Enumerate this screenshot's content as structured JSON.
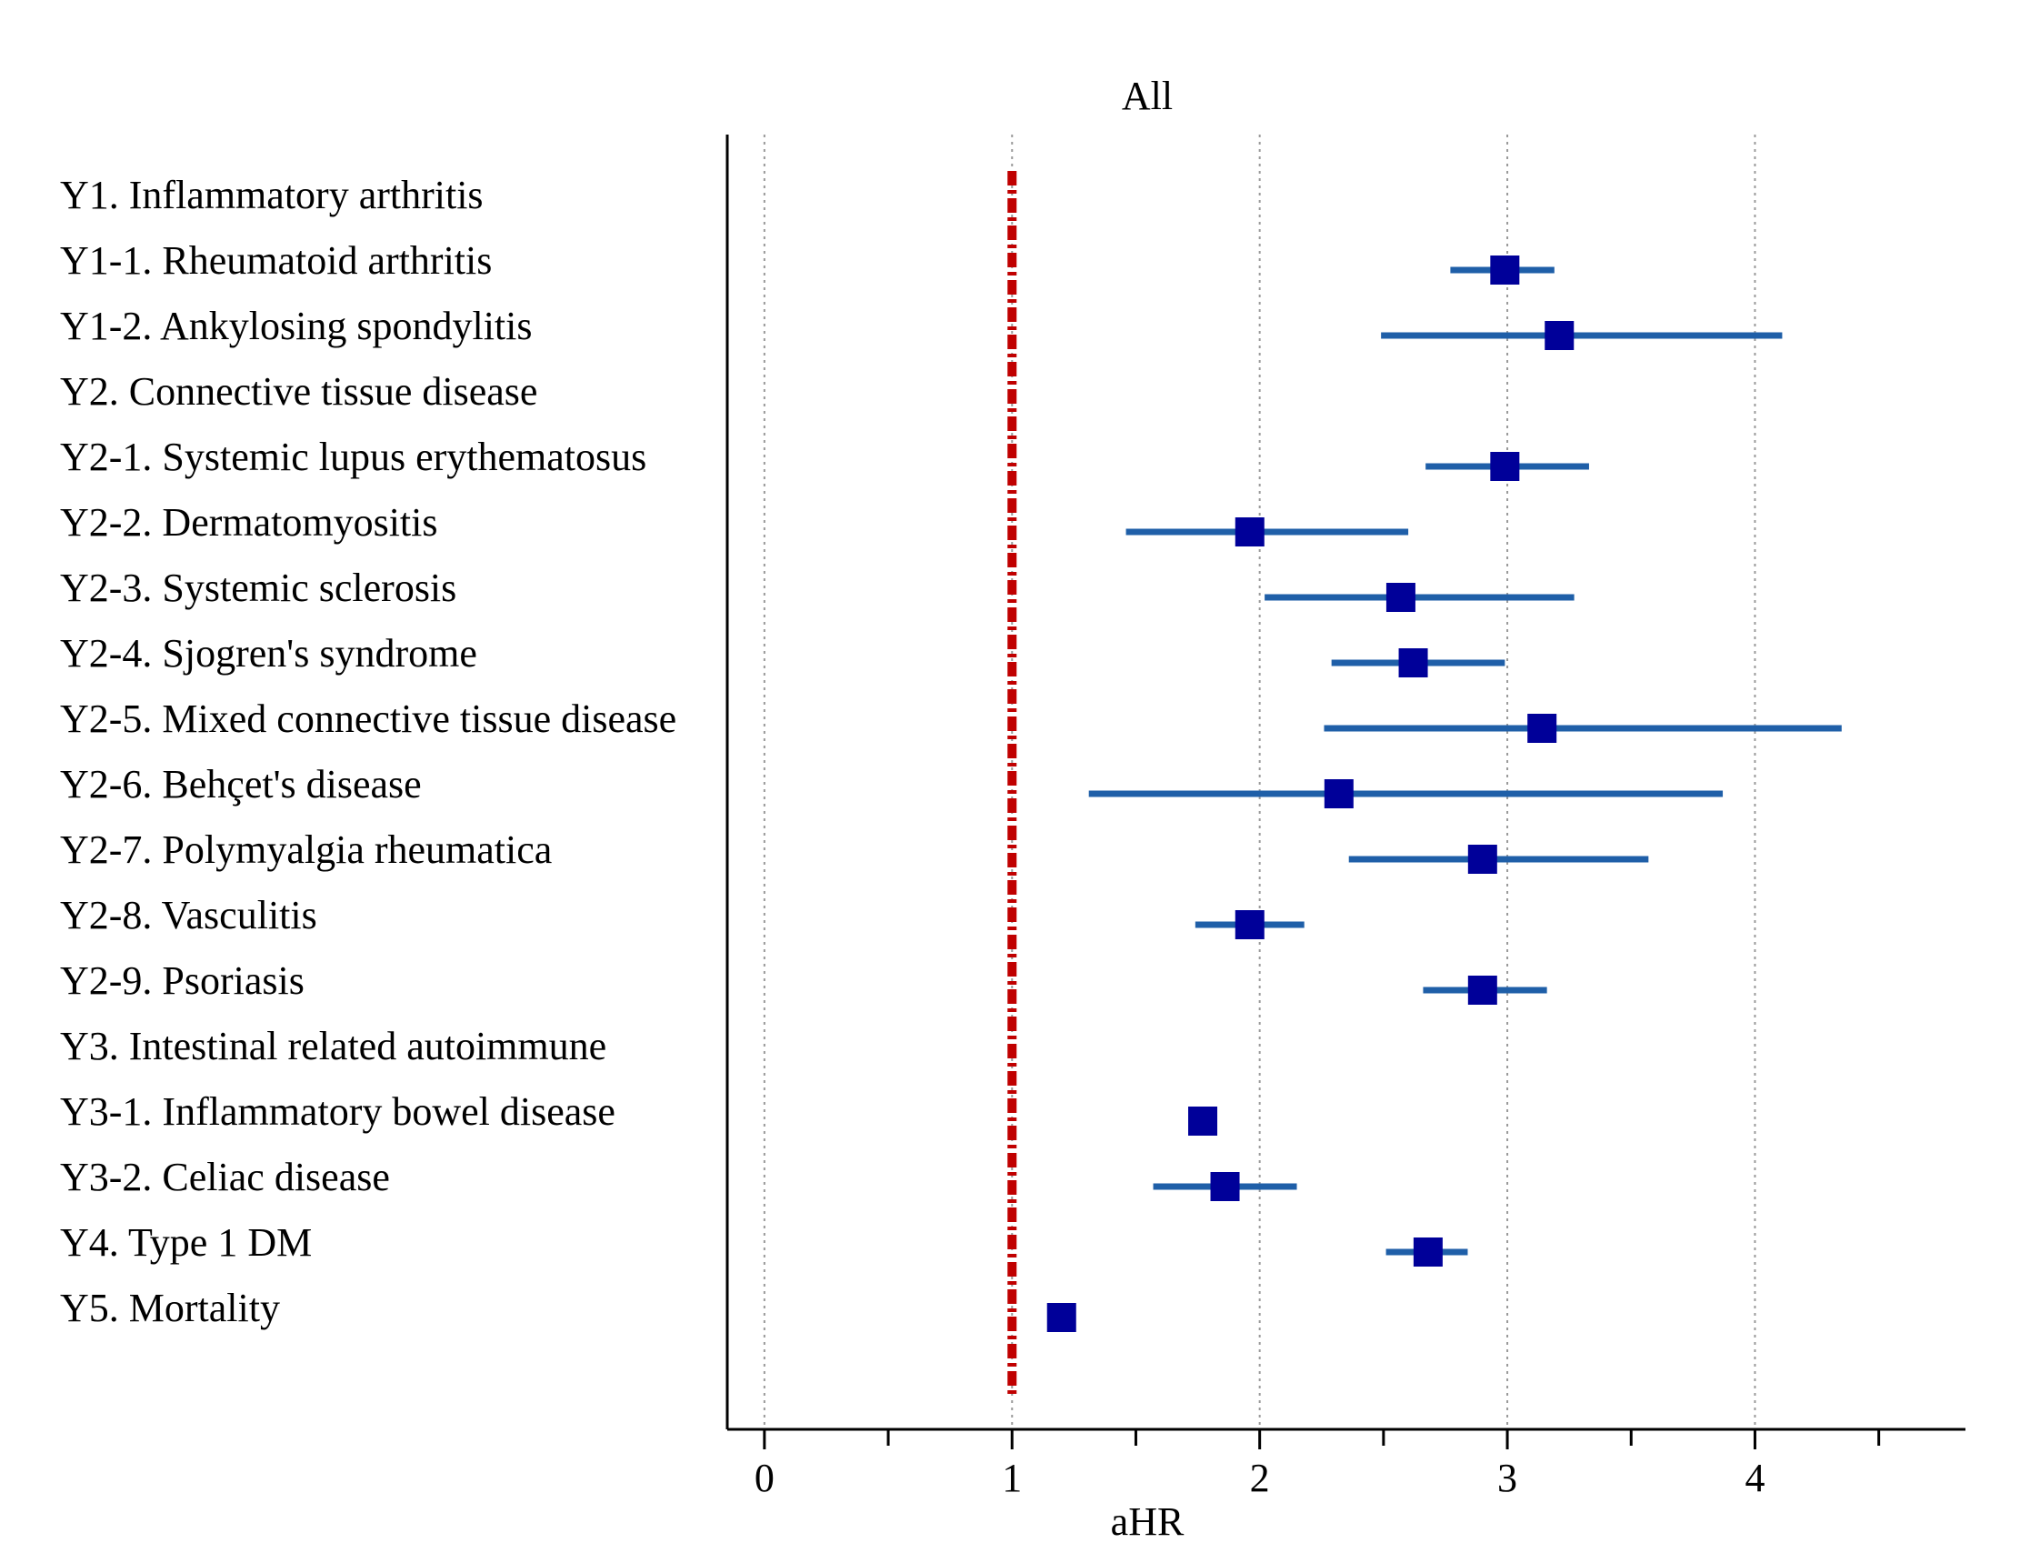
{
  "chart_data": {
    "type": "forest",
    "title": "All",
    "xlabel": "aHR",
    "ylabel": "",
    "xlim": [
      -0.15,
      4.85
    ],
    "x_ticks": [
      0,
      1,
      2,
      3,
      4
    ],
    "x_minor_ticks": [
      0.5,
      1.5,
      2.5,
      3.5,
      4.5
    ],
    "gridlines_at": [
      0,
      1,
      2,
      3,
      4
    ],
    "reference_line": 1,
    "colors": {
      "point": "#000099",
      "ci": "#1f5fa8",
      "reference": "#c00000",
      "grid": "#999999",
      "axis": "#000000"
    },
    "rows": [
      {
        "label": "Y1. Inflammatory arthritis",
        "hr": null,
        "lower": null,
        "upper": null
      },
      {
        "label": "Y1-1. Rheumatoid arthritis",
        "hr": 2.99,
        "lower": 2.77,
        "upper": 3.19
      },
      {
        "label": "Y1-2. Ankylosing spondylitis",
        "hr": 3.21,
        "lower": 2.49,
        "upper": 4.11
      },
      {
        "label": "Y2. Connective tissue disease",
        "hr": null,
        "lower": null,
        "upper": null
      },
      {
        "label": "Y2-1. Systemic lupus erythematosus",
        "hr": 2.99,
        "lower": 2.67,
        "upper": 3.33
      },
      {
        "label": "Y2-2. Dermatomyositis",
        "hr": 1.96,
        "lower": 1.46,
        "upper": 2.6
      },
      {
        "label": "Y2-3. Systemic sclerosis",
        "hr": 2.57,
        "lower": 2.02,
        "upper": 3.27
      },
      {
        "label": "Y2-4. Sjogren's syndrome",
        "hr": 2.62,
        "lower": 2.29,
        "upper": 2.99
      },
      {
        "label": "Y2-5. Mixed connective tissue disease",
        "hr": 3.14,
        "lower": 2.26,
        "upper": 4.35
      },
      {
        "label": "Y2-6. Behçet's disease",
        "hr": 2.32,
        "lower": 1.31,
        "upper": 3.87
      },
      {
        "label": "Y2-7. Polymyalgia rheumatica",
        "hr": 2.9,
        "lower": 2.36,
        "upper": 3.57
      },
      {
        "label": "Y2-8. Vasculitis",
        "hr": 1.96,
        "lower": 1.74,
        "upper": 2.18
      },
      {
        "label": "Y2-9. Psoriasis",
        "hr": 2.9,
        "lower": 2.66,
        "upper": 3.16
      },
      {
        "label": "Y3. Intestinal related autoimmune",
        "hr": null,
        "lower": null,
        "upper": null
      },
      {
        "label": "Y3-1. Inflammatory bowel disease",
        "hr": 1.77,
        "lower": null,
        "upper": null
      },
      {
        "label": "Y3-2. Celiac disease",
        "hr": 1.86,
        "lower": 1.57,
        "upper": 2.15
      },
      {
        "label": "Y4. Type 1 DM",
        "hr": 2.68,
        "lower": 2.51,
        "upper": 2.84
      },
      {
        "label": "Y5. Mortality",
        "hr": 1.2,
        "lower": null,
        "upper": null
      }
    ]
  }
}
